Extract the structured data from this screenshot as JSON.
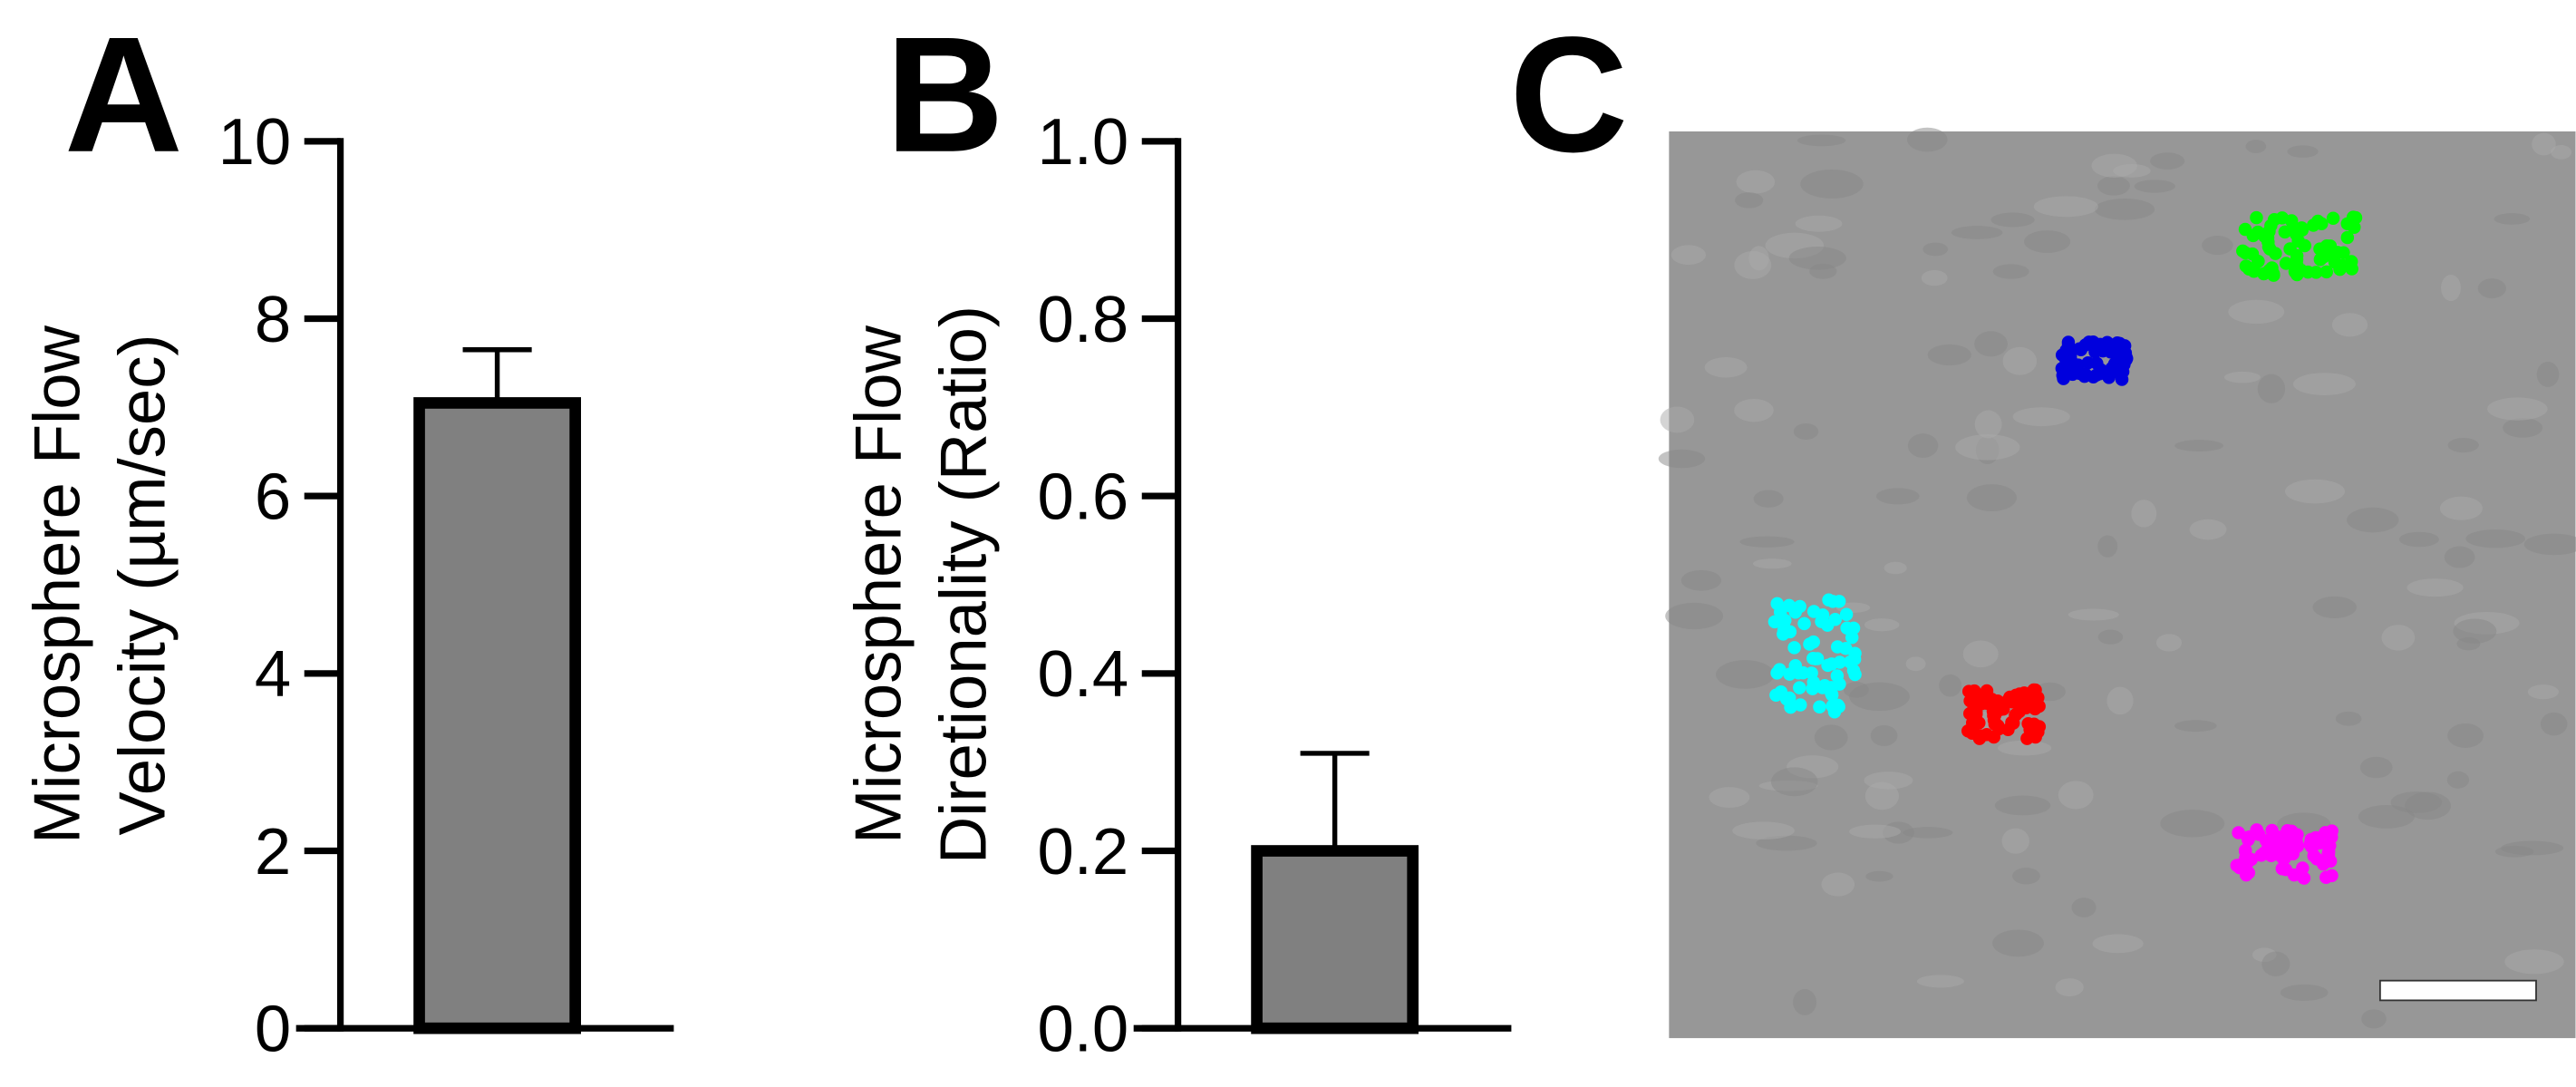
{
  "chart_data": [
    {
      "type": "bar",
      "panel_label": "A",
      "ylabel": [
        "Microsphere Flow",
        "Velocity (µm/sec)"
      ],
      "categories": [
        null
      ],
      "values": [
        7.05
      ],
      "errors": [
        0.6
      ],
      "color": "#808080",
      "ylim": [
        0,
        10
      ],
      "yticks": [
        0,
        2,
        4,
        6,
        8,
        10
      ]
    },
    {
      "type": "bar",
      "panel_label": "B",
      "ylabel": [
        "Microsphere Flow",
        "Diretionality (Ratio)"
      ],
      "categories": [
        null
      ],
      "values": [
        0.2
      ],
      "errors": [
        0.11
      ],
      "color": "#808080",
      "ylim": [
        0,
        1
      ],
      "yticks": [
        {
          "value": 0,
          "label": "0.0"
        },
        0.2,
        0.4,
        0.6,
        0.8,
        {
          "value": 1,
          "label": "1.0"
        }
      ]
    }
  ],
  "panel_c": {
    "label": "C"
  }
}
